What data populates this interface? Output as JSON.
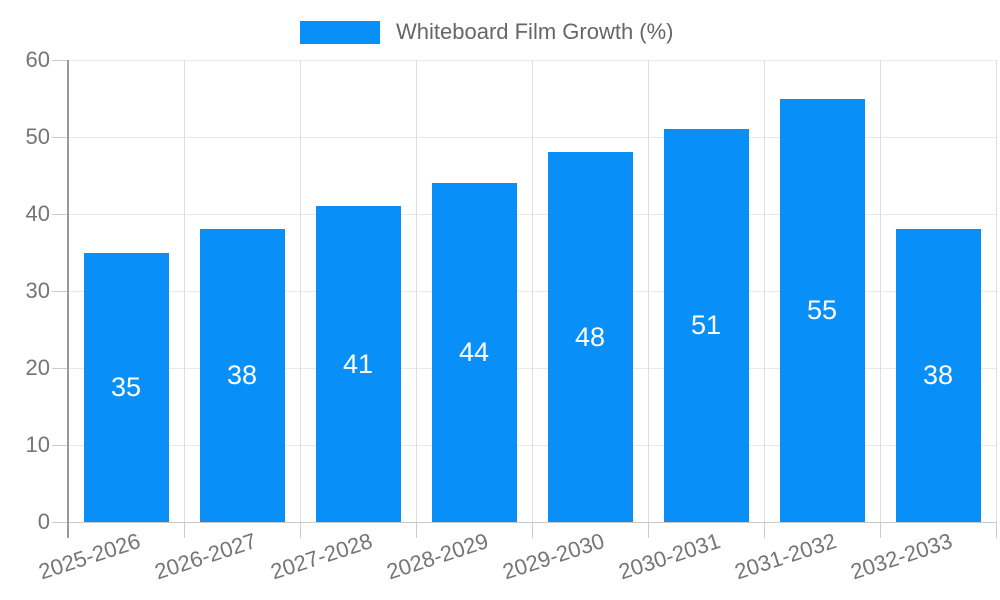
{
  "chart_data": {
    "type": "bar",
    "title": "Whiteboard Film Growth (%)",
    "series_name": "Whiteboard Film Growth (%)",
    "categories": [
      "2025-2026",
      "2026-2027",
      "2027-2028",
      "2028-2029",
      "2029-2030",
      "2030-2031",
      "2031-2032",
      "2032-2033"
    ],
    "values": [
      35,
      38,
      41,
      44,
      48,
      51,
      55,
      38
    ],
    "xlabel": "",
    "ylabel": "",
    "ylim": [
      0,
      60
    ],
    "yticks": [
      0,
      10,
      20,
      30,
      40,
      50,
      60
    ],
    "grid": true,
    "legend_position": "top-center",
    "bar_value_labels": "inside-center",
    "x_tick_rotation_deg": -18
  },
  "colors": {
    "bar": "#0890f8",
    "bar_label": "#ffffff",
    "legend_text": "#666666",
    "tick_label": "#757575",
    "grid_h": "#e8e8e8",
    "grid_v": "#dedede",
    "axis_y": "#999999",
    "axis_x": "#c9c9c9",
    "tick": "#cccccc",
    "background": "#ffffff"
  }
}
